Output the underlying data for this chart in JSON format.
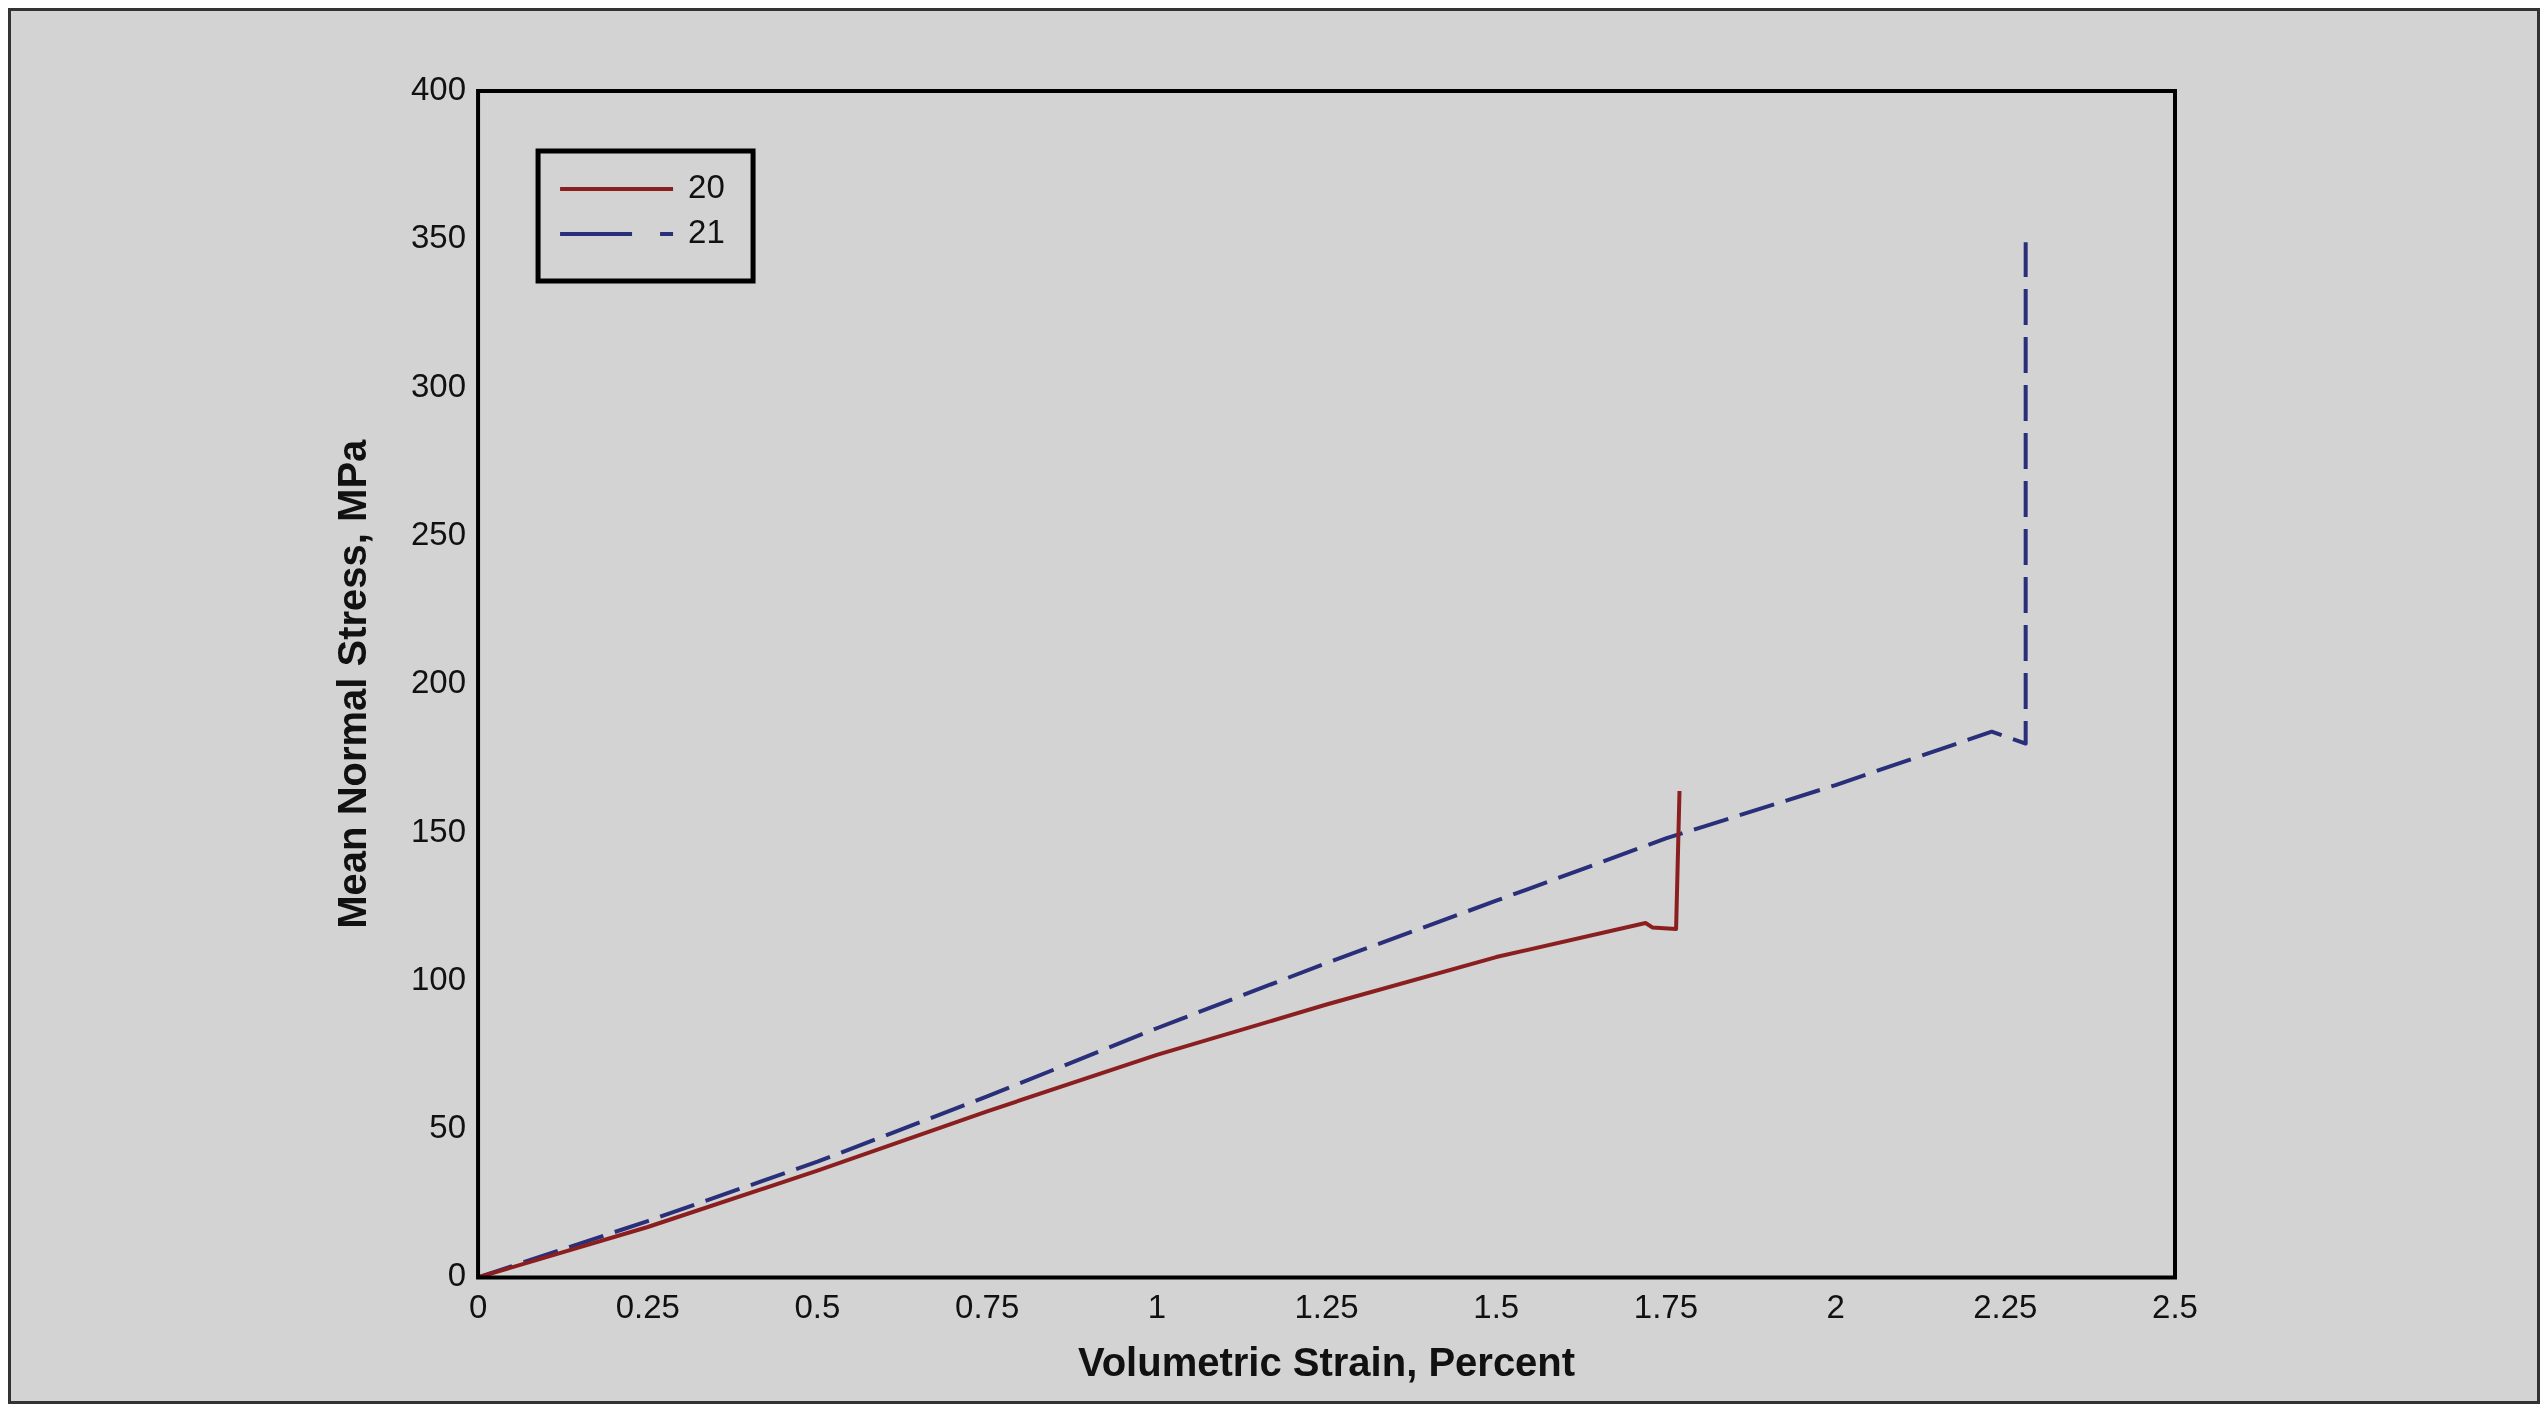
{
  "chart_data": {
    "type": "line",
    "xlabel": "Volumetric Strain, Percent",
    "ylabel": "Mean Normal Stress, MPa",
    "xlim": [
      0,
      2.5
    ],
    "xticks": [
      0,
      0.25,
      0.5,
      0.75,
      1,
      1.25,
      1.5,
      1.75,
      2,
      2.25,
      2.5
    ],
    "ylim": [
      0,
      400
    ],
    "yticks": [
      0,
      50,
      100,
      150,
      200,
      250,
      300,
      350,
      400
    ],
    "legend": "top left",
    "marker": "none",
    "series": [
      {
        "name": "20",
        "color": "#8b1f1f",
        "line_style": "solid",
        "x": [
          0,
          0.25,
          0.5,
          0.75,
          1,
          1.25,
          1.5,
          1.72,
          1.73,
          1.765,
          1.77
        ],
        "values": [
          0,
          17,
          36,
          56,
          75,
          92,
          108,
          119.5,
          118,
          117.5,
          164
        ]
      },
      {
        "name": "21",
        "color": "#2a2f7a",
        "line_style": "dashed",
        "x": [
          0,
          0.25,
          0.5,
          0.75,
          1,
          1.25,
          1.5,
          1.75,
          2,
          2.23,
          2.28,
          2.28
        ],
        "values": [
          0,
          19,
          39,
          61,
          84,
          106,
          127,
          148,
          166,
          184,
          180,
          349
        ]
      }
    ]
  }
}
